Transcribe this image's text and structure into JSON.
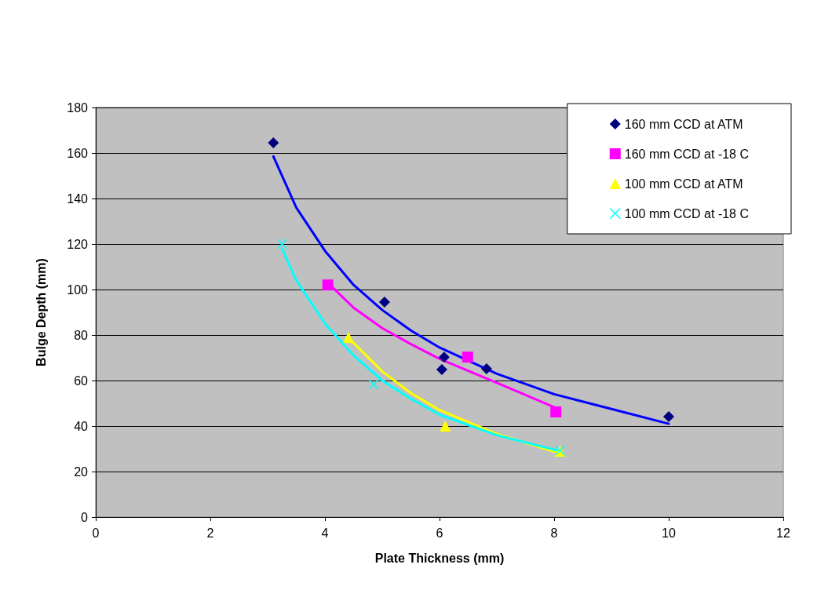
{
  "chart_data": {
    "type": "scatter",
    "xlabel": "Plate Thickness (mm)",
    "ylabel": "Bulge Depth (mm)",
    "xlim": [
      0,
      12
    ],
    "xticks": [
      0,
      2,
      4,
      6,
      8,
      10,
      12
    ],
    "ylim": [
      0,
      180
    ],
    "yticks": [
      0,
      20,
      40,
      60,
      80,
      100,
      120,
      140,
      160,
      180
    ],
    "grid": "y",
    "legend": "top right",
    "series": [
      {
        "name": "160 mm CCD at ATM",
        "color": "#000080",
        "marker": "diamond",
        "x": [
          3.1,
          5.04,
          6.04,
          6.08,
          6.82,
          10.0
        ],
        "values": [
          164.5,
          94.5,
          64.8,
          70.3,
          65.2,
          44.1
        ]
      },
      {
        "name": "160 mm CCD at -18 C",
        "color": "#ff00ff",
        "marker": "square",
        "x": [
          4.05,
          6.49,
          8.03
        ],
        "values": [
          102,
          70.3,
          46.2
        ]
      },
      {
        "name": "100 mm CCD at ATM",
        "color": "#ffff00",
        "marker": "triangle",
        "x": [
          4.41,
          6.1,
          8.1
        ],
        "values": [
          79,
          40,
          29
        ]
      },
      {
        "name": "100 mm CCD at -18 C",
        "color": "#00ffff",
        "marker": "cross",
        "x": [
          3.25,
          4.85,
          8.1
        ],
        "values": [
          120,
          58.3,
          29.3
        ]
      },
      {
        "type": "line",
        "color": "#0000ff",
        "marker": "none",
        "x": [
          3.1,
          3.5,
          4,
          4.5,
          5,
          5.5,
          6,
          7,
          8,
          9,
          10
        ],
        "values": [
          158.5,
          136,
          117,
          102,
          91,
          82,
          74.5,
          63,
          54,
          47.5,
          41
        ]
      },
      {
        "type": "line",
        "color": "#ff00ff",
        "marker": "none",
        "x": [
          4.05,
          4.5,
          5,
          5.5,
          6,
          7,
          8.03
        ],
        "values": [
          103,
          92,
          83,
          76,
          69.5,
          59,
          48
        ]
      },
      {
        "type": "line",
        "color": "#ffff00",
        "marker": "none",
        "x": [
          4.4,
          5,
          5.5,
          6,
          7,
          8.1
        ],
        "values": [
          79,
          64,
          54.5,
          47,
          36.5,
          28
        ]
      },
      {
        "type": "line",
        "color": "#00ffff",
        "marker": "none",
        "x": [
          3.25,
          3.5,
          4,
          4.5,
          5,
          5.5,
          6,
          7,
          8.1
        ],
        "values": [
          118,
          104,
          85,
          71,
          60,
          52,
          45,
          36,
          29
        ]
      }
    ]
  }
}
